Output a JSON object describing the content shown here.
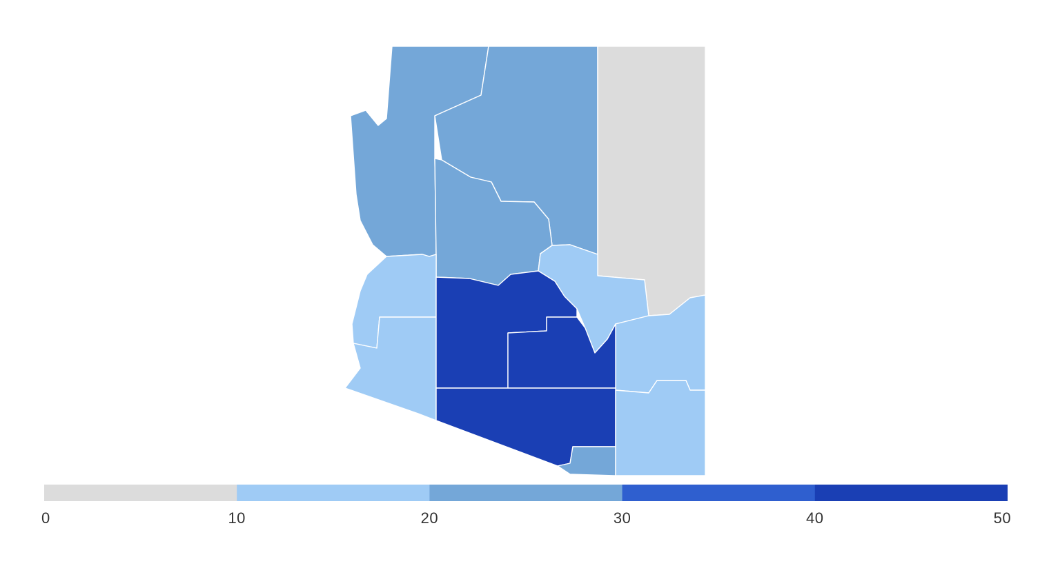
{
  "legend": {
    "ticks": [
      "0",
      "10",
      "20",
      "30",
      "40",
      "50"
    ],
    "bins": [
      {
        "from": 0,
        "to": 10,
        "color": "#dcdcdc"
      },
      {
        "from": 10,
        "to": 20,
        "color": "#9fcbf5"
      },
      {
        "from": 20,
        "to": 30,
        "color": "#74a7d8"
      },
      {
        "from": 30,
        "to": 40,
        "color": "#2f5fcf"
      },
      {
        "from": 40,
        "to": 50,
        "color": "#1a3fb4"
      }
    ]
  },
  "colors": {
    "bin0": "#dcdcdc",
    "bin10": "#9fcbf5",
    "bin20": "#74a7d8",
    "bin40": "#1a3fb4",
    "border": "#ffffff"
  }
}
